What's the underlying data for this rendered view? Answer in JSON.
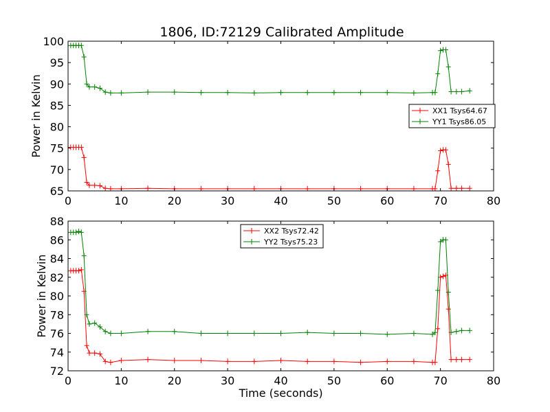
{
  "title": "1806, ID:72129 Calibrated Amplitude",
  "chart_data": [
    {
      "type": "line",
      "title": "1806, ID:72129 Calibrated Amplitude",
      "xlabel": "",
      "ylabel": "Power in Kelvin",
      "xlim": [
        0,
        80
      ],
      "ylim": [
        65,
        100
      ],
      "xticks": [
        0,
        10,
        20,
        30,
        40,
        50,
        60,
        70,
        80
      ],
      "yticks": [
        65,
        70,
        75,
        80,
        85,
        90,
        95,
        100
      ],
      "grid": false,
      "legend_position": "center-right",
      "marker": "plus",
      "series": [
        {
          "name": "XX1 Tsys64.67",
          "color": "#ff0000",
          "x": [
            0.5,
            1.0,
            1.5,
            2.0,
            2.5,
            3.0,
            3.5,
            4.0,
            5.0,
            6.0,
            7.0,
            8.0,
            10.0,
            15.0,
            20.0,
            25.0,
            30.0,
            35.0,
            40.0,
            45.0,
            50.0,
            55.0,
            60.0,
            65.0,
            68.5,
            69.0,
            69.5,
            70.0,
            70.5,
            71.0,
            71.5,
            72.0,
            73.0,
            74.0,
            75.5
          ],
          "y": [
            75.2,
            75.2,
            75.2,
            75.2,
            75.2,
            72.8,
            67.0,
            66.3,
            66.3,
            66.2,
            65.6,
            65.5,
            65.5,
            65.6,
            65.5,
            65.5,
            65.5,
            65.5,
            65.5,
            65.5,
            65.5,
            65.5,
            65.5,
            65.5,
            65.5,
            65.5,
            69.7,
            74.4,
            74.6,
            74.6,
            71.2,
            65.6,
            65.6,
            65.6,
            65.6
          ]
        },
        {
          "name": "YY1 Tsys86.05",
          "color": "#008000",
          "x": [
            0.5,
            1.0,
            1.5,
            2.0,
            2.5,
            3.0,
            3.5,
            4.0,
            5.0,
            6.0,
            7.0,
            8.0,
            10.0,
            15.0,
            20.0,
            25.0,
            30.0,
            35.0,
            40.0,
            45.0,
            50.0,
            55.0,
            60.0,
            65.0,
            68.5,
            69.0,
            69.5,
            70.0,
            70.5,
            71.0,
            71.5,
            72.0,
            73.0,
            74.0,
            75.5
          ],
          "y": [
            99.0,
            99.0,
            99.0,
            99.0,
            99.0,
            96.3,
            90.0,
            89.3,
            89.3,
            89.0,
            88.1,
            87.9,
            87.9,
            88.1,
            88.1,
            88.0,
            88.0,
            87.9,
            88.0,
            88.0,
            88.0,
            88.0,
            88.0,
            87.9,
            88.0,
            88.0,
            92.4,
            97.8,
            98.0,
            98.0,
            94.0,
            88.2,
            88.2,
            88.2,
            88.4
          ]
        }
      ]
    },
    {
      "type": "line",
      "title": "",
      "xlabel": "Time (seconds)",
      "ylabel": "Power in Kelvin",
      "xlim": [
        0,
        80
      ],
      "ylim": [
        72,
        88
      ],
      "xticks": [
        0,
        10,
        20,
        30,
        40,
        50,
        60,
        70,
        80
      ],
      "yticks": [
        72,
        74,
        76,
        78,
        80,
        82,
        84,
        86,
        88
      ],
      "grid": false,
      "legend_position": "top-center",
      "marker": "plus",
      "series": [
        {
          "name": "XX2 Tsys72.42",
          "color": "#ff0000",
          "x": [
            0.5,
            1.0,
            1.5,
            2.0,
            2.5,
            3.0,
            3.5,
            4.0,
            5.0,
            6.0,
            7.0,
            8.0,
            10.0,
            15.0,
            20.0,
            25.0,
            30.0,
            35.0,
            40.0,
            45.0,
            50.0,
            55.0,
            60.0,
            65.0,
            68.5,
            69.0,
            69.5,
            70.0,
            70.5,
            71.0,
            71.5,
            72.0,
            73.0,
            74.0,
            75.5
          ],
          "y": [
            82.7,
            82.7,
            82.7,
            82.7,
            82.8,
            80.5,
            74.7,
            73.9,
            73.9,
            73.8,
            73.0,
            72.9,
            73.1,
            73.2,
            73.1,
            73.1,
            73.0,
            73.0,
            73.1,
            73.0,
            73.0,
            72.9,
            73.0,
            73.0,
            72.9,
            72.9,
            76.5,
            82.0,
            82.1,
            82.2,
            78.6,
            73.2,
            73.2,
            73.2,
            73.2
          ]
        },
        {
          "name": "YY2 Tsys75.23",
          "color": "#008000",
          "x": [
            0.5,
            1.0,
            1.5,
            2.0,
            2.5,
            3.0,
            3.5,
            4.0,
            5.0,
            6.0,
            7.0,
            8.0,
            10.0,
            15.0,
            20.0,
            25.0,
            30.0,
            35.0,
            40.0,
            45.0,
            50.0,
            55.0,
            60.0,
            65.0,
            68.5,
            69.0,
            69.5,
            70.0,
            70.5,
            71.0,
            71.5,
            72.0,
            73.0,
            74.0,
            75.5
          ],
          "y": [
            86.8,
            86.8,
            86.8,
            86.9,
            86.8,
            84.3,
            78.0,
            77.0,
            77.1,
            76.7,
            76.2,
            76.0,
            76.0,
            76.2,
            76.2,
            76.0,
            76.0,
            76.0,
            76.0,
            76.1,
            76.0,
            76.0,
            75.9,
            76.0,
            75.9,
            76.1,
            80.6,
            85.8,
            86.0,
            86.0,
            80.4,
            76.1,
            76.2,
            76.3,
            76.3
          ]
        }
      ]
    }
  ]
}
